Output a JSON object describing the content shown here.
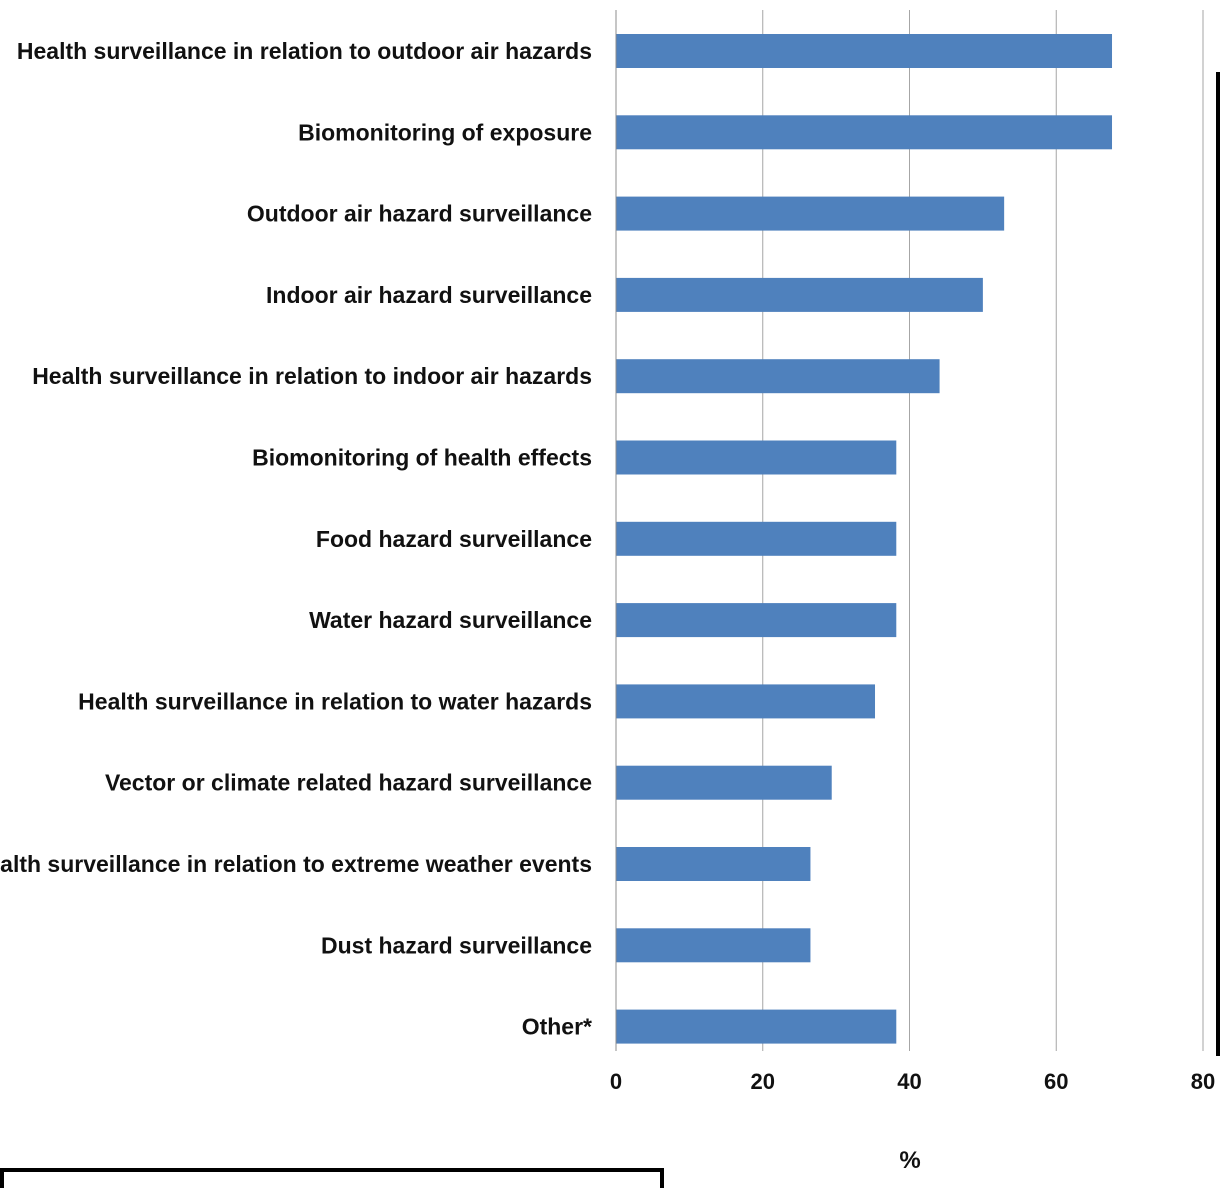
{
  "chart_data": {
    "type": "bar",
    "orientation": "horizontal",
    "categories": [
      "Health surveillance in relation to outdoor air hazards",
      "Biomonitoring of exposure",
      "Outdoor air hazard surveillance",
      "Indoor air hazard surveillance",
      "Health surveillance in relation to indoor air hazards",
      "Biomonitoring of health effects",
      "Food hazard surveillance",
      "Water hazard surveillance",
      "Health surveillance in relation to water hazards",
      "Vector or climate related hazard surveillance",
      "Health surveillance in relation to extreme weather events",
      "Dust hazard surveillance",
      "Other*"
    ],
    "values": [
      67.6,
      67.6,
      52.9,
      50.0,
      44.1,
      38.2,
      38.2,
      38.2,
      35.3,
      29.4,
      26.5,
      26.5,
      38.2
    ],
    "xlabel": "%",
    "ylabel": "",
    "xlim": [
      0,
      80
    ],
    "xticks": [
      0,
      20,
      40,
      60,
      80
    ],
    "grid": "vertical",
    "legend": "none",
    "bar_color": "#4f81bd",
    "grid_color": "#a6a6a6"
  }
}
